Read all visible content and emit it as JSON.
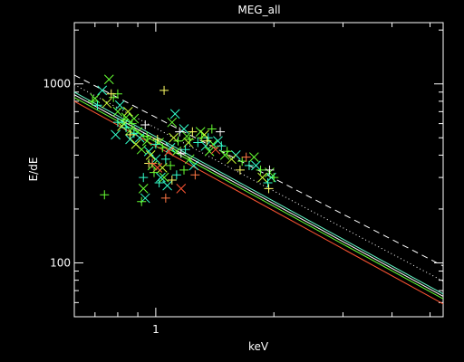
{
  "chart_data": {
    "type": "scatter",
    "title": "MEG_all",
    "xlabel": "keV",
    "ylabel": "E/dE",
    "x_scale": "log",
    "y_scale": "log",
    "xlim": [
      0.62,
      5.4
    ],
    "ylim": [
      50,
      2200
    ],
    "x_ticks": [
      {
        "value": 1,
        "label": "1"
      }
    ],
    "y_ticks": [
      {
        "value": 100,
        "label": "100"
      },
      {
        "value": 1000,
        "label": "1000"
      }
    ],
    "background": "#000000",
    "foreground": "#ffffff",
    "lines": [
      {
        "style": "dashed",
        "color": "#ffffff",
        "points": [
          [
            0.62,
            1120
          ],
          [
            5.4,
            96
          ]
        ]
      },
      {
        "style": "dotted",
        "color": "#ffffff",
        "points": [
          [
            0.62,
            990
          ],
          [
            5.4,
            79
          ]
        ]
      },
      {
        "style": "solid",
        "color": "#66ffcc",
        "points": [
          [
            0.62,
            900
          ],
          [
            5.4,
            67
          ]
        ]
      },
      {
        "style": "solid",
        "color": "#ffffff",
        "points": [
          [
            0.62,
            870
          ],
          [
            5.4,
            65
          ]
        ]
      },
      {
        "style": "solid",
        "color": "#66ff33",
        "points": [
          [
            0.62,
            840
          ],
          [
            5.4,
            63
          ]
        ]
      },
      {
        "style": "solid",
        "color": "#ff5533",
        "points": [
          [
            0.62,
            800
          ],
          [
            5.4,
            59
          ]
        ]
      }
    ],
    "series": [
      {
        "marker": "x",
        "color": "#66ff33",
        "points": [
          [
            0.7,
            830
          ],
          [
            0.76,
            1060
          ],
          [
            0.8,
            700
          ],
          [
            0.84,
            650
          ],
          [
            0.86,
            550
          ],
          [
            0.9,
            540
          ],
          [
            0.92,
            430
          ],
          [
            0.93,
            260
          ],
          [
            0.98,
            350
          ],
          [
            1.02,
            470
          ],
          [
            1.05,
            300
          ],
          [
            1.1,
            610
          ],
          [
            1.13,
            420
          ],
          [
            1.2,
            510
          ],
          [
            1.3,
            540
          ],
          [
            1.37,
            420
          ],
          [
            1.5,
            400
          ],
          [
            1.78,
            390
          ],
          [
            1.95,
            320
          ],
          [
            0.88,
            640
          ],
          [
            0.95,
            480
          ],
          [
            1.22,
            380
          ],
          [
            1.4,
            460
          ]
        ]
      },
      {
        "marker": "x",
        "color": "#33ffcc",
        "points": [
          [
            0.73,
            920
          ],
          [
            0.79,
            520
          ],
          [
            0.83,
            600
          ],
          [
            0.86,
            490
          ],
          [
            0.91,
            500
          ],
          [
            0.94,
            230
          ],
          [
            0.96,
            420
          ],
          [
            1.0,
            380
          ],
          [
            1.03,
            300
          ],
          [
            1.07,
            270
          ],
          [
            1.12,
            680
          ],
          [
            1.18,
            560
          ],
          [
            1.25,
            350
          ],
          [
            1.34,
            450
          ],
          [
            1.44,
            480
          ],
          [
            1.6,
            400
          ],
          [
            1.8,
            350
          ],
          [
            1.97,
            300
          ],
          [
            0.81,
            760
          ],
          [
            1.09,
            440
          ]
        ]
      },
      {
        "marker": "x",
        "color": "#ccff33",
        "points": [
          [
            0.75,
            780
          ],
          [
            0.82,
            580
          ],
          [
            0.89,
            460
          ],
          [
            0.97,
            400
          ],
          [
            1.04,
            340
          ],
          [
            1.11,
            500
          ],
          [
            1.21,
            470
          ],
          [
            1.33,
            520
          ],
          [
            1.56,
            380
          ],
          [
            1.87,
            300
          ],
          [
            0.85,
            700
          ]
        ]
      },
      {
        "marker": "x",
        "color": "#ff5533",
        "points": [
          [
            1.01,
            340
          ],
          [
            1.08,
            420
          ],
          [
            1.16,
            260
          ],
          [
            1.42,
            430
          ]
        ]
      },
      {
        "marker": "plus",
        "color": "#66ff33",
        "points": [
          [
            0.69,
            800
          ],
          [
            0.74,
            240
          ],
          [
            0.78,
            840
          ],
          [
            0.83,
            630
          ],
          [
            0.87,
            600
          ],
          [
            0.92,
            220
          ],
          [
            0.95,
            510
          ],
          [
            0.99,
            320
          ],
          [
            1.04,
            440
          ],
          [
            1.09,
            350
          ],
          [
            1.14,
            480
          ],
          [
            1.22,
            490
          ],
          [
            1.31,
            500
          ],
          [
            1.39,
            560
          ],
          [
            1.52,
            420
          ],
          [
            1.66,
            370
          ],
          [
            1.85,
            330
          ],
          [
            2.0,
            300
          ],
          [
            0.8,
            880
          ],
          [
            1.18,
            330
          ]
        ]
      },
      {
        "marker": "plus",
        "color": "#33ffcc",
        "points": [
          [
            0.71,
            760
          ],
          [
            0.8,
            610
          ],
          [
            0.88,
            530
          ],
          [
            0.93,
            300
          ],
          [
            1.0,
            460
          ],
          [
            1.06,
            380
          ],
          [
            1.13,
            310
          ],
          [
            1.19,
            430
          ],
          [
            1.28,
            470
          ],
          [
            1.36,
            500
          ],
          [
            1.47,
            450
          ],
          [
            1.73,
            350
          ],
          [
            1.93,
            280
          ],
          [
            0.84,
            570
          ],
          [
            1.02,
            280
          ]
        ]
      },
      {
        "marker": "plus",
        "color": "#ffff66",
        "points": [
          [
            0.77,
            880
          ],
          [
            0.86,
            520
          ],
          [
            0.96,
            360
          ],
          [
            1.05,
            920
          ],
          [
            1.1,
            290
          ],
          [
            1.24,
            540
          ],
          [
            1.35,
            480
          ],
          [
            1.64,
            330
          ],
          [
            1.94,
            260
          ],
          [
            1.01,
            490
          ]
        ]
      },
      {
        "marker": "plus",
        "color": "#ff7744",
        "points": [
          [
            0.98,
            360
          ],
          [
            1.06,
            230
          ],
          [
            1.26,
            310
          ],
          [
            1.7,
            390
          ]
        ]
      },
      {
        "marker": "plus",
        "color": "#ffffff",
        "points": [
          [
            0.94,
            590
          ],
          [
            1.15,
            540
          ],
          [
            1.46,
            540
          ],
          [
            1.16,
            410
          ],
          [
            1.95,
            330
          ]
        ]
      }
    ]
  }
}
